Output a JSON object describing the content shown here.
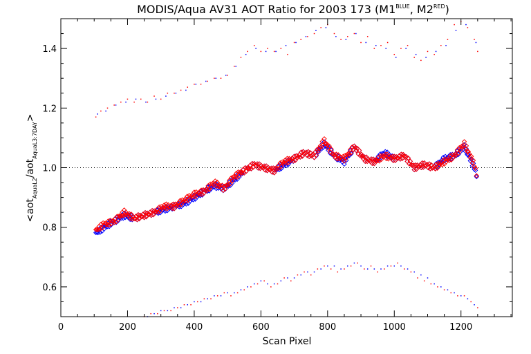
{
  "chart_data": {
    "type": "scatter",
    "title": {
      "main": "MODIS/Aqua AV31 AOT Ratio for 2003 173 (M1",
      "sup1": "BLUE",
      "mid": ", M2",
      "sup2": "RED",
      "end": ")"
    },
    "xlabel": "Scan Pixel",
    "ylabel": {
      "open": "<aot",
      "sub1": "AquaL2",
      "slash": "/aot",
      "sub2": "AquaL3:7DAY",
      "close": ">"
    },
    "xlim": [
      0,
      1354
    ],
    "ylim": [
      0.5,
      1.5
    ],
    "xticks": [
      0,
      200,
      400,
      600,
      800,
      1000,
      1200
    ],
    "xtick_labels": [
      "0",
      "200",
      "400",
      "600",
      "800",
      "1000",
      "1200"
    ],
    "yticks": [
      0.6,
      0.8,
      1.0,
      1.2,
      1.4
    ],
    "ytick_labels": [
      "0.6",
      "0.8",
      "1.0",
      "1.2",
      "1.4"
    ],
    "reference_line": 1.0,
    "colors": {
      "blue": "#0000ff",
      "red": "#ff0000",
      "axis": "#000000"
    },
    "series": [
      {
        "color": "blue",
        "marker": "diamond",
        "x": [
          105,
          130,
          160,
          190,
          220,
          250,
          280,
          310,
          340,
          370,
          400,
          430,
          460,
          490,
          520,
          550,
          580,
          610,
          640,
          670,
          700,
          730,
          760,
          790,
          820,
          850,
          880,
          910,
          940,
          970,
          1000,
          1030,
          1060,
          1090,
          1120,
          1150,
          1180,
          1210,
          1240,
          1250
        ],
        "y": [
          0.78,
          0.8,
          0.82,
          0.84,
          0.83,
          0.84,
          0.85,
          0.86,
          0.87,
          0.88,
          0.9,
          0.92,
          0.94,
          0.93,
          0.96,
          0.99,
          1.01,
          1.0,
          0.99,
          1.01,
          1.03,
          1.05,
          1.04,
          1.08,
          1.04,
          1.02,
          1.07,
          1.03,
          1.02,
          1.05,
          1.03,
          1.04,
          1.0,
          1.01,
          1.0,
          1.03,
          1.04,
          1.07,
          1.0,
          0.96
        ]
      },
      {
        "color": "red",
        "marker": "diamond",
        "x": [
          105,
          130,
          160,
          190,
          220,
          250,
          280,
          310,
          340,
          370,
          400,
          430,
          460,
          490,
          520,
          550,
          580,
          610,
          640,
          670,
          700,
          730,
          760,
          790,
          820,
          850,
          880,
          910,
          940,
          970,
          1000,
          1030,
          1060,
          1090,
          1120,
          1150,
          1180,
          1210,
          1240,
          1250
        ],
        "y": [
          0.79,
          0.81,
          0.82,
          0.85,
          0.83,
          0.84,
          0.85,
          0.87,
          0.87,
          0.89,
          0.91,
          0.92,
          0.95,
          0.93,
          0.97,
          0.99,
          1.01,
          1.0,
          0.99,
          1.02,
          1.03,
          1.05,
          1.04,
          1.09,
          1.04,
          1.03,
          1.07,
          1.03,
          1.02,
          1.04,
          1.03,
          1.04,
          1.0,
          1.01,
          1.0,
          1.02,
          1.04,
          1.08,
          1.01,
          0.96
        ]
      },
      {
        "color": "red",
        "marker": "dot",
        "x": [
          105,
          120,
          140,
          160,
          180,
          200,
          220,
          240,
          260,
          280,
          300,
          320,
          340,
          360,
          380,
          400,
          420,
          440,
          460,
          480,
          500,
          520,
          540,
          560,
          580,
          600,
          620,
          640,
          660,
          680,
          700,
          720,
          740,
          760,
          780,
          800,
          820,
          840,
          860,
          880,
          900,
          920,
          940,
          960,
          980,
          1000,
          1020,
          1040,
          1060,
          1080,
          1100,
          1120,
          1140,
          1160,
          1180,
          1200,
          1220,
          1240,
          1250
        ],
        "y": [
          1.17,
          1.19,
          1.2,
          1.21,
          1.22,
          1.23,
          1.22,
          1.23,
          1.22,
          1.24,
          1.23,
          1.25,
          1.25,
          1.26,
          1.27,
          1.28,
          1.28,
          1.29,
          1.3,
          1.3,
          1.31,
          1.34,
          1.37,
          1.39,
          1.41,
          1.39,
          1.4,
          1.39,
          1.4,
          1.38,
          1.42,
          1.43,
          1.44,
          1.45,
          1.47,
          1.48,
          1.45,
          1.43,
          1.44,
          1.45,
          1.42,
          1.44,
          1.4,
          1.41,
          1.42,
          1.38,
          1.4,
          1.41,
          1.37,
          1.36,
          1.39,
          1.38,
          1.41,
          1.43,
          1.48,
          1.49,
          1.47,
          1.43,
          1.39
        ]
      },
      {
        "color": "blue",
        "marker": "dot",
        "x": [
          110,
          135,
          165,
          195,
          225,
          255,
          285,
          315,
          345,
          375,
          405,
          435,
          465,
          495,
          525,
          555,
          585,
          615,
          645,
          675,
          705,
          735,
          765,
          795,
          825,
          855,
          885,
          915,
          945,
          975,
          1005,
          1035,
          1065,
          1095,
          1125,
          1155,
          1185,
          1215,
          1245
        ],
        "y": [
          1.18,
          1.19,
          1.21,
          1.22,
          1.23,
          1.22,
          1.23,
          1.24,
          1.25,
          1.26,
          1.28,
          1.29,
          1.3,
          1.31,
          1.34,
          1.38,
          1.4,
          1.39,
          1.39,
          1.41,
          1.42,
          1.44,
          1.46,
          1.47,
          1.44,
          1.43,
          1.45,
          1.42,
          1.41,
          1.4,
          1.37,
          1.4,
          1.38,
          1.37,
          1.39,
          1.41,
          1.46,
          1.48,
          1.42
        ]
      },
      {
        "color": "red",
        "marker": "dot",
        "x": [
          250,
          270,
          290,
          310,
          330,
          350,
          370,
          390,
          410,
          430,
          450,
          470,
          490,
          510,
          530,
          550,
          570,
          590,
          610,
          630,
          650,
          670,
          690,
          710,
          730,
          750,
          770,
          790,
          810,
          830,
          850,
          870,
          890,
          910,
          930,
          950,
          970,
          990,
          1010,
          1030,
          1050,
          1070,
          1090,
          1110,
          1130,
          1150,
          1170,
          1190,
          1210,
          1230,
          1250
        ],
        "y": [
          0.5,
          0.51,
          0.51,
          0.52,
          0.52,
          0.53,
          0.54,
          0.54,
          0.55,
          0.56,
          0.56,
          0.57,
          0.58,
          0.57,
          0.58,
          0.59,
          0.6,
          0.61,
          0.62,
          0.6,
          0.61,
          0.63,
          0.62,
          0.64,
          0.65,
          0.64,
          0.66,
          0.67,
          0.66,
          0.65,
          0.66,
          0.67,
          0.68,
          0.66,
          0.67,
          0.65,
          0.66,
          0.67,
          0.68,
          0.66,
          0.65,
          0.63,
          0.62,
          0.61,
          0.6,
          0.59,
          0.58,
          0.57,
          0.57,
          0.55,
          0.53
        ]
      },
      {
        "color": "blue",
        "marker": "dot",
        "x": [
          260,
          280,
          300,
          320,
          340,
          360,
          380,
          400,
          420,
          440,
          460,
          480,
          500,
          520,
          540,
          560,
          580,
          600,
          620,
          640,
          660,
          680,
          700,
          720,
          740,
          760,
          780,
          800,
          820,
          840,
          860,
          880,
          900,
          920,
          940,
          960,
          980,
          1000,
          1020,
          1040,
          1060,
          1080,
          1100,
          1120,
          1140,
          1160,
          1180,
          1200,
          1220,
          1240
        ],
        "y": [
          0.5,
          0.51,
          0.52,
          0.52,
          0.53,
          0.53,
          0.54,
          0.55,
          0.55,
          0.56,
          0.57,
          0.57,
          0.58,
          0.58,
          0.59,
          0.6,
          0.61,
          0.62,
          0.61,
          0.61,
          0.62,
          0.63,
          0.63,
          0.64,
          0.65,
          0.65,
          0.66,
          0.67,
          0.67,
          0.66,
          0.67,
          0.68,
          0.67,
          0.66,
          0.66,
          0.66,
          0.67,
          0.67,
          0.67,
          0.66,
          0.65,
          0.64,
          0.63,
          0.61,
          0.6,
          0.59,
          0.58,
          0.57,
          0.56,
          0.54
        ]
      }
    ]
  }
}
